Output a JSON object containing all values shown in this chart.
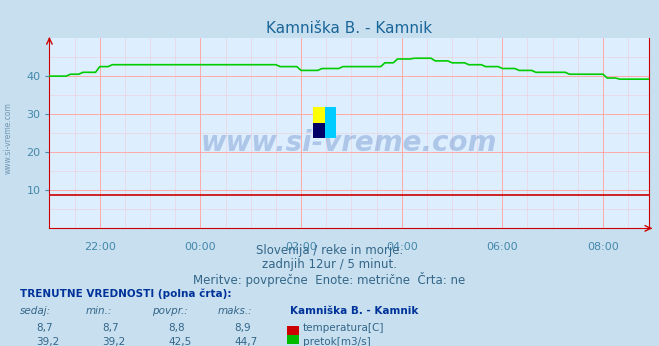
{
  "title": "Kamniška B. - Kamnik",
  "title_color": "#1a6699",
  "bg_color": "#c8dff0",
  "plot_bg_color": "#ddeeff",
  "grid_v_color": "#ffaaaa",
  "grid_h_color": "#ffaaaa",
  "tick_color": "#4488aa",
  "ylim": [
    0,
    50
  ],
  "yticks": [
    10,
    20,
    30,
    40
  ],
  "x_labels": [
    "22:00",
    "00:00",
    "02:00",
    "04:00",
    "06:00",
    "08:00"
  ],
  "subtitle_lines": [
    "Slovenija / reke in morje.",
    "zadnjih 12ur / 5 minut.",
    "Meritve: povprečne  Enote: metrične  Črta: ne"
  ],
  "table_header": "TRENUTNE VREDNOSTI (polna črta):",
  "col_headers": [
    "sedaj:",
    "min.:",
    "povpr.:",
    "maks.:"
  ],
  "station_label": "Kamniška B. - Kamnik",
  "row1_values": [
    "8,7",
    "8,7",
    "8,8",
    "8,9"
  ],
  "row1_label": "temperatura[C]",
  "row1_color": "#cc0000",
  "row2_values": [
    "39,2",
    "39,2",
    "42,5",
    "44,7"
  ],
  "row2_label": "pretok[m3/s]",
  "row2_color": "#00bb00",
  "temp_color": "#cc0000",
  "flow_color": "#00cc00",
  "watermark_text": "www.si-vreme.com",
  "watermark_color": "#2255aa",
  "watermark_alpha": 0.25,
  "n_points": 144
}
